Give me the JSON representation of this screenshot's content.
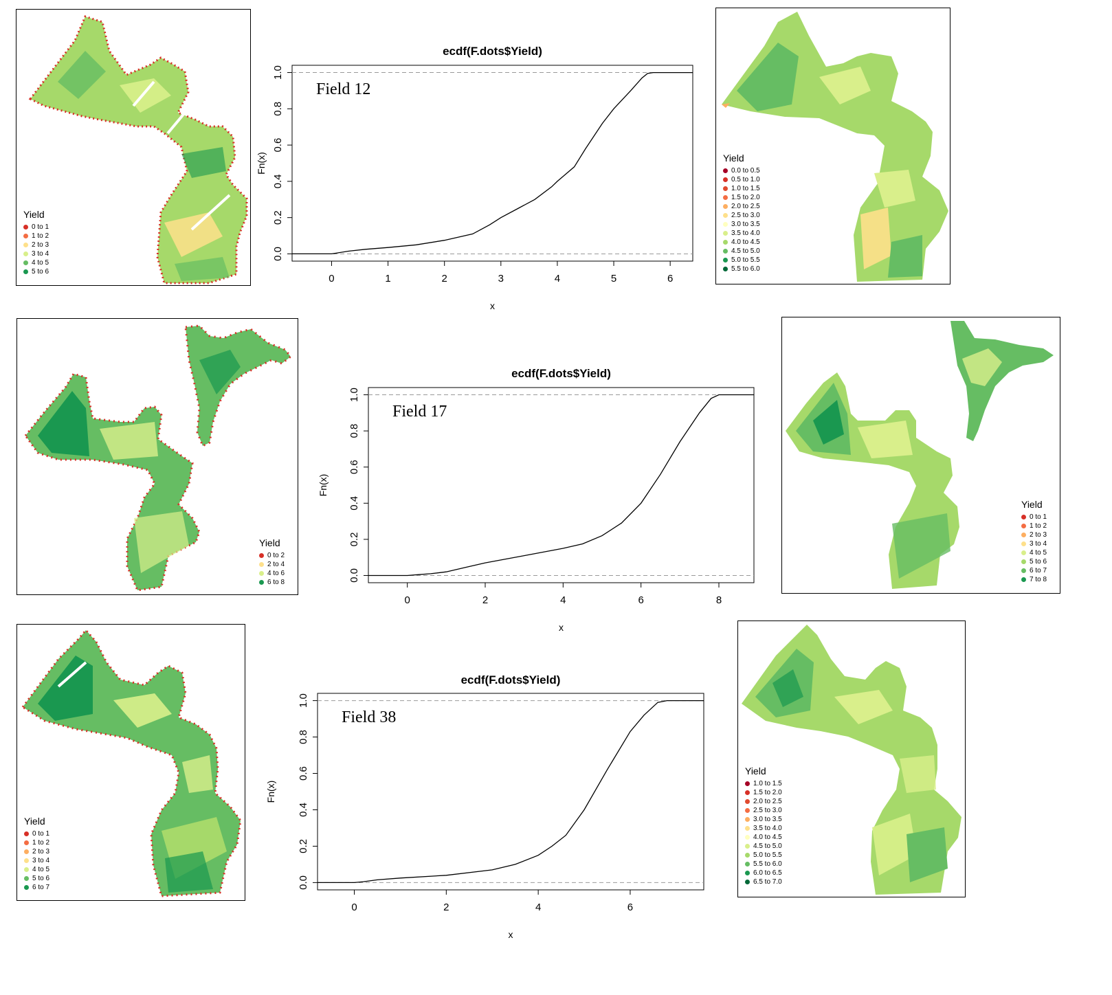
{
  "palette": {
    "r1": "#a50026",
    "r2": "#d73027",
    "r3": "#f46d43",
    "r4": "#fdae61",
    "r5": "#fee08b",
    "r6": "#ffffbf",
    "g1": "#d9ef8b",
    "g2": "#a6d96a",
    "g3": "#66bd63",
    "g4": "#1a9850",
    "g5": "#006837"
  },
  "chart_data": [
    {
      "type": "line",
      "title": "ecdf(F.dots$Yield)",
      "annotation": "Field 12",
      "xlabel": "x",
      "ylabel": "Fn(x)",
      "xlim": [
        -0.7,
        6.4
      ],
      "ylim": [
        -0.04,
        1.04
      ],
      "xticks": [
        0,
        1,
        2,
        3,
        4,
        5,
        6
      ],
      "yticks": [
        "0.0",
        "0.2",
        "0.4",
        "0.6",
        "0.8",
        "1.0"
      ],
      "ytick_values": [
        0,
        0.2,
        0.4,
        0.6,
        0.8,
        1.0
      ],
      "reference_lines": [
        0,
        1
      ],
      "x": [
        -0.7,
        0.0,
        0.1,
        0.3,
        0.6,
        1.0,
        1.5,
        2.0,
        2.5,
        2.8,
        3.0,
        3.3,
        3.6,
        3.9,
        4.0,
        4.3,
        4.5,
        4.8,
        5.0,
        5.3,
        5.5,
        5.6,
        5.7,
        6.4
      ],
      "y": [
        0.0,
        0.0,
        0.005,
        0.015,
        0.025,
        0.035,
        0.05,
        0.075,
        0.11,
        0.16,
        0.2,
        0.25,
        0.3,
        0.37,
        0.4,
        0.48,
        0.58,
        0.72,
        0.8,
        0.9,
        0.97,
        0.995,
        1.0,
        1.0
      ]
    },
    {
      "type": "line",
      "title": "ecdf(F.dots$Yield)",
      "annotation": "Field 17",
      "xlabel": "x",
      "ylabel": "Fn(x)",
      "xlim": [
        -1.0,
        8.9
      ],
      "ylim": [
        -0.04,
        1.04
      ],
      "xticks": [
        0,
        2,
        4,
        6,
        8
      ],
      "yticks": [
        "0.0",
        "0.2",
        "0.4",
        "0.6",
        "0.8",
        "1.0"
      ],
      "ytick_values": [
        0,
        0.2,
        0.4,
        0.6,
        0.8,
        1.0
      ],
      "reference_lines": [
        0,
        1
      ],
      "x": [
        -1.0,
        0.0,
        0.3,
        0.6,
        1.0,
        1.5,
        2.0,
        3.0,
        4.0,
        4.5,
        5.0,
        5.5,
        6.0,
        6.5,
        7.0,
        7.5,
        7.8,
        8.0,
        8.9
      ],
      "y": [
        0.0,
        0.0,
        0.005,
        0.01,
        0.02,
        0.045,
        0.07,
        0.11,
        0.15,
        0.175,
        0.22,
        0.29,
        0.4,
        0.56,
        0.74,
        0.9,
        0.98,
        1.0,
        1.0
      ]
    },
    {
      "type": "line",
      "title": "ecdf(F.dots$Yield)",
      "annotation": "Field 38",
      "xlabel": "x",
      "ylabel": "Fn(x)",
      "xlim": [
        -0.8,
        7.6
      ],
      "ylim": [
        -0.04,
        1.04
      ],
      "xticks": [
        0,
        2,
        4,
        6
      ],
      "yticks": [
        "0.0",
        "0.2",
        "0.4",
        "0.6",
        "0.8",
        "1.0"
      ],
      "ytick_values": [
        0,
        0.2,
        0.4,
        0.6,
        0.8,
        1.0
      ],
      "reference_lines": [
        0,
        1
      ],
      "x": [
        -0.8,
        0.0,
        0.2,
        0.5,
        1.0,
        2.0,
        3.0,
        3.5,
        4.0,
        4.3,
        4.6,
        5.0,
        5.5,
        6.0,
        6.3,
        6.6,
        6.8,
        7.6
      ],
      "y": [
        0.0,
        0.0,
        0.005,
        0.015,
        0.025,
        0.04,
        0.07,
        0.1,
        0.15,
        0.2,
        0.26,
        0.4,
        0.62,
        0.83,
        0.92,
        0.99,
        1.0,
        1.0
      ]
    }
  ],
  "maps": [
    {
      "legend_title": "Yield",
      "legend": [
        {
          "label": "0 to 1",
          "color": "#d73027"
        },
        {
          "label": "1 to 2",
          "color": "#f46d43"
        },
        {
          "label": "2 to 3",
          "color": "#fee08b"
        },
        {
          "label": "3 to 4",
          "color": "#d9ef8b"
        },
        {
          "label": "4 to 5",
          "color": "#66bd63"
        },
        {
          "label": "5 to 6",
          "color": "#1a9850"
        }
      ]
    },
    {
      "legend_title": "Yield",
      "legend": [
        {
          "label": "0.0 to 0.5",
          "color": "#a50026"
        },
        {
          "label": "0.5 to 1.0",
          "color": "#d73027"
        },
        {
          "label": "1.0 to 1.5",
          "color": "#e04a2f"
        },
        {
          "label": "1.5 to 2.0",
          "color": "#f46d43"
        },
        {
          "label": "2.0 to 2.5",
          "color": "#fdae61"
        },
        {
          "label": "2.5 to 3.0",
          "color": "#fee08b"
        },
        {
          "label": "3.0 to 3.5",
          "color": "#ffffbf"
        },
        {
          "label": "3.5 to 4.0",
          "color": "#d9ef8b"
        },
        {
          "label": "4.0 to 4.5",
          "color": "#a6d96a"
        },
        {
          "label": "4.5 to 5.0",
          "color": "#66bd63"
        },
        {
          "label": "5.0 to 5.5",
          "color": "#1a9850"
        },
        {
          "label": "5.5 to 6.0",
          "color": "#006837"
        }
      ]
    },
    {
      "legend_title": "Yield",
      "legend": [
        {
          "label": "0 to 2",
          "color": "#d73027"
        },
        {
          "label": "2 to 4",
          "color": "#fee08b"
        },
        {
          "label": "4 to 6",
          "color": "#d9ef8b"
        },
        {
          "label": "6 to 8",
          "color": "#1a9850"
        }
      ]
    },
    {
      "legend_title": "Yield",
      "legend": [
        {
          "label": "0 to 1",
          "color": "#d73027"
        },
        {
          "label": "1 to 2",
          "color": "#f46d43"
        },
        {
          "label": "2 to 3",
          "color": "#fdae61"
        },
        {
          "label": "3 to 4",
          "color": "#fee08b"
        },
        {
          "label": "4 to 5",
          "color": "#d9ef8b"
        },
        {
          "label": "5 to 6",
          "color": "#a6d96a"
        },
        {
          "label": "6 to 7",
          "color": "#66bd63"
        },
        {
          "label": "7 to 8",
          "color": "#1a9850"
        }
      ]
    },
    {
      "legend_title": "Yield",
      "legend": [
        {
          "label": "0 to 1",
          "color": "#d73027"
        },
        {
          "label": "1 to 2",
          "color": "#f46d43"
        },
        {
          "label": "2 to 3",
          "color": "#fdae61"
        },
        {
          "label": "3 to 4",
          "color": "#fee08b"
        },
        {
          "label": "4 to 5",
          "color": "#d9ef8b"
        },
        {
          "label": "5 to 6",
          "color": "#66bd63"
        },
        {
          "label": "6 to 7",
          "color": "#1a9850"
        }
      ]
    },
    {
      "legend_title": "Yield",
      "legend": [
        {
          "label": "1.0 to 1.5",
          "color": "#a50026"
        },
        {
          "label": "1.5 to 2.0",
          "color": "#d73027"
        },
        {
          "label": "2.0 to 2.5",
          "color": "#e04a2f"
        },
        {
          "label": "2.5 to 3.0",
          "color": "#f46d43"
        },
        {
          "label": "3.0 to 3.5",
          "color": "#fdae61"
        },
        {
          "label": "3.5 to 4.0",
          "color": "#fee08b"
        },
        {
          "label": "4.0 to 4.5",
          "color": "#ffffbf"
        },
        {
          "label": "4.5 to 5.0",
          "color": "#d9ef8b"
        },
        {
          "label": "5.0 to 5.5",
          "color": "#a6d96a"
        },
        {
          "label": "5.5 to 6.0",
          "color": "#66bd63"
        },
        {
          "label": "6.0 to 6.5",
          "color": "#1a9850"
        },
        {
          "label": "6.5 to 7.0",
          "color": "#006837"
        }
      ]
    }
  ]
}
